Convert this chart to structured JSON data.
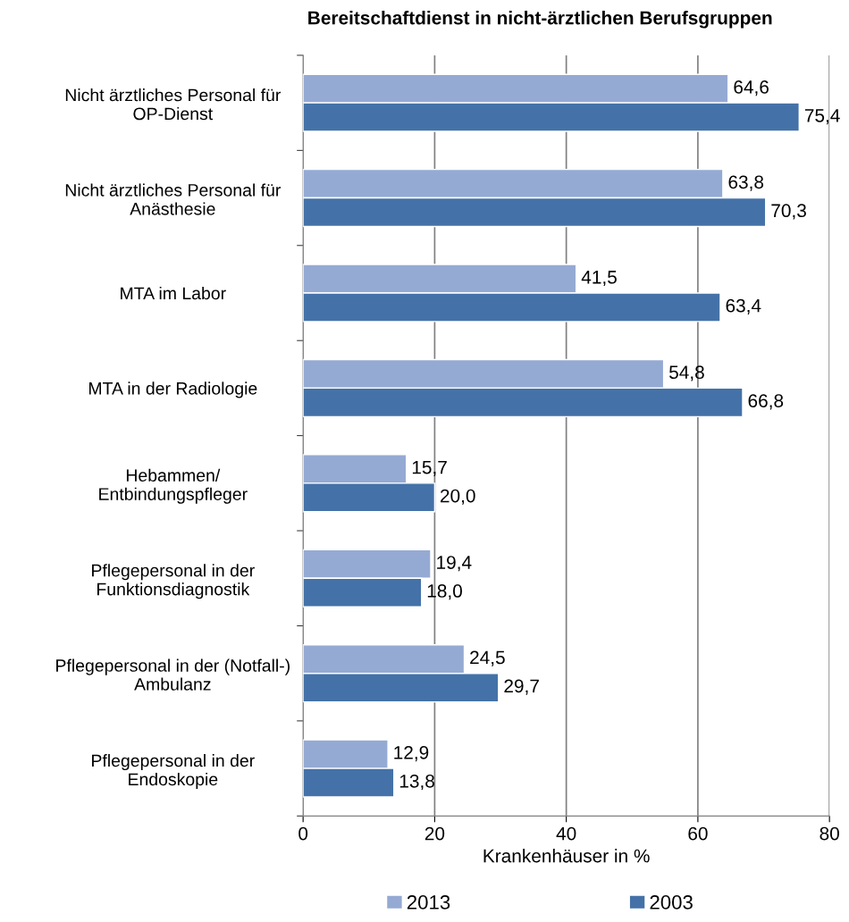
{
  "chart_data": {
    "type": "bar",
    "orientation": "horizontal",
    "title": "Bereitschaftdienst in nicht-ärztlichen Berufsgruppen",
    "xlabel": "Krankenhäuser in %",
    "categories": [
      "Nicht ärztliches Personal für\nOP-Dienst",
      "Nicht ärztliches Personal für\nAnästhesie",
      "MTA im Labor",
      "MTA in der Radiologie",
      "Hebammen/\nEntbindungspfleger",
      "Pflegepersonal in der\nFunktionsdiagnostik",
      "Pflegepersonal in der (Notfall-)\nAmbulanz",
      "Pflegepersonal in der\nEndoskopie"
    ],
    "series": [
      {
        "name": "2013",
        "color": "#95aad3",
        "values": [
          64.6,
          63.8,
          41.5,
          54.8,
          15.7,
          19.4,
          24.5,
          12.9
        ],
        "value_labels": [
          "64,6",
          "63,8",
          "41,5",
          "54,8",
          "15,7",
          "19,4",
          "24,5",
          "12,9"
        ]
      },
      {
        "name": "2003",
        "color": "#4472a8",
        "values": [
          75.4,
          70.3,
          63.4,
          66.8,
          20.0,
          18.0,
          29.7,
          13.8
        ],
        "value_labels": [
          "75,4",
          "70,3",
          "63,4",
          "66,8",
          "20,0",
          "18,0",
          "29,7",
          "13,8"
        ]
      }
    ],
    "xlim": [
      0,
      80
    ],
    "xticks": [
      0,
      20,
      40,
      60,
      80
    ],
    "grid": "x",
    "legend": "bottom"
  }
}
